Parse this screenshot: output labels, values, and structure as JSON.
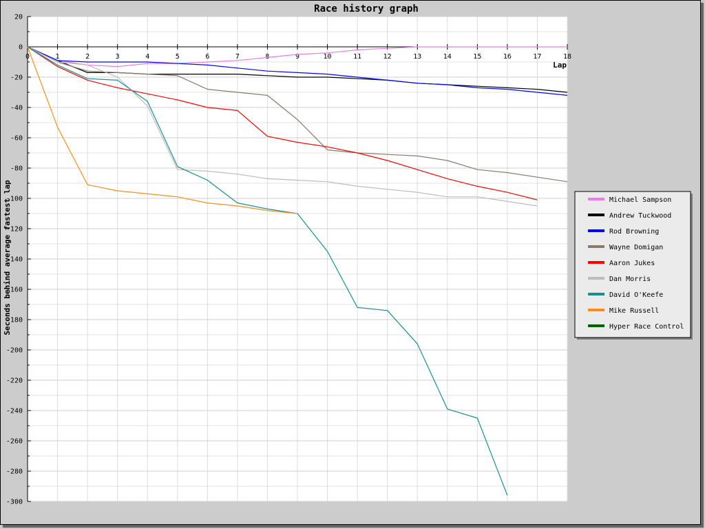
{
  "chart_data": {
    "type": "line",
    "title": "Race history graph",
    "xlabel": "Lap",
    "ylabel": "Seconds behind average fastest lap",
    "xlim": [
      0,
      18
    ],
    "ylim": [
      -300,
      20
    ],
    "xticks": [
      0,
      1,
      2,
      3,
      4,
      5,
      6,
      7,
      8,
      9,
      10,
      11,
      12,
      13,
      14,
      15,
      16,
      17,
      18
    ],
    "yticks": [
      20,
      0,
      -20,
      -40,
      -60,
      -80,
      -100,
      -120,
      -140,
      -160,
      -180,
      -200,
      -220,
      -240,
      -260,
      -280,
      -300
    ],
    "grid": true,
    "legend_position": "right",
    "series": [
      {
        "name": "Michael Sampson",
        "color": "#e87de8",
        "x": [
          0,
          1,
          2,
          3,
          4,
          5,
          6,
          7,
          8,
          9,
          10,
          11,
          12,
          13,
          14,
          15,
          16,
          17,
          18
        ],
        "y": [
          0,
          -9,
          -12,
          -13,
          -11,
          -11,
          -10,
          -9,
          -7,
          -5,
          -4,
          -2,
          -1,
          0,
          0,
          0,
          0,
          0,
          0
        ]
      },
      {
        "name": "Andrew Tuckwood",
        "color": "#000000",
        "x": [
          0,
          1,
          2,
          3,
          4,
          5,
          6,
          7,
          8,
          9,
          10,
          11,
          12,
          13,
          14,
          15,
          16,
          17,
          18
        ],
        "y": [
          0,
          -9,
          -17,
          -17,
          -18,
          -18,
          -18,
          -18,
          -19,
          -20,
          -20,
          -21,
          -22,
          -24,
          -25,
          -26,
          -27,
          -28,
          -30
        ]
      },
      {
        "name": "Rod Browning",
        "color": "#0000ff",
        "x": [
          0,
          1,
          2,
          3,
          4,
          5,
          6,
          7,
          8,
          9,
          10,
          11,
          12,
          13,
          14,
          15,
          16,
          17,
          18
        ],
        "y": [
          0,
          -9,
          -10,
          -10,
          -10,
          -11,
          -12,
          -14,
          -16,
          -17,
          -18,
          -20,
          -22,
          -24,
          -25,
          -27,
          -28,
          -30,
          -32
        ]
      },
      {
        "name": "Wayne Domigan",
        "color": "#8b7a6b",
        "x": [
          0,
          1,
          2,
          3,
          4,
          5,
          6,
          7,
          8,
          9,
          10,
          11,
          12,
          13,
          14,
          15,
          16,
          17,
          18
        ],
        "y": [
          0,
          -10,
          -16,
          -17,
          -18,
          -19,
          -28,
          -30,
          -32,
          -48,
          -68,
          -70,
          -71,
          -72,
          -75,
          -81,
          -83,
          -86,
          -89
        ]
      },
      {
        "name": "Aaron Jukes",
        "color": "#ff0000",
        "x": [
          0,
          1,
          2,
          3,
          4,
          5,
          6,
          7,
          8,
          9,
          10,
          11,
          12,
          13,
          14,
          15,
          16,
          17
        ],
        "y": [
          0,
          -13,
          -22,
          -27,
          -31,
          -35,
          -40,
          -42,
          -59,
          -63,
          -66,
          -70,
          -75,
          -81,
          -87,
          -92,
          -96,
          -101
        ]
      },
      {
        "name": "Dan Morris",
        "color": "#bbbbbb",
        "x": [
          0,
          1,
          2,
          3,
          4,
          5,
          6,
          7,
          8,
          9,
          10,
          11,
          12,
          13,
          14,
          15,
          16,
          17
        ],
        "y": [
          0,
          -10,
          -12,
          -20,
          -39,
          -81,
          -82,
          -84,
          -87,
          -88,
          -89,
          -92,
          -94,
          -96,
          -99,
          -99,
          -102,
          -105
        ]
      },
      {
        "name": "David O'Keefe",
        "color": "#1a8f8f",
        "x": [
          0,
          1,
          2,
          3,
          4,
          5,
          6,
          7,
          8,
          9,
          10,
          11,
          12,
          13,
          14,
          15,
          16
        ],
        "y": [
          0,
          -12,
          -21,
          -22,
          -36,
          -79,
          -88,
          -103,
          -107,
          -110,
          -135,
          -172,
          -174,
          -196,
          -239,
          -245,
          -296
        ]
      },
      {
        "name": "Mike Russell",
        "color": "#ff8c1a",
        "x": [
          0,
          1,
          2,
          3,
          4,
          5,
          6,
          7,
          8,
          9
        ],
        "y": [
          0,
          -53,
          -91,
          -95,
          -97,
          -99,
          -103,
          -105,
          -108,
          -110
        ]
      },
      {
        "name": "Hyper Race Control",
        "color": "#006400",
        "x": [],
        "y": []
      }
    ]
  }
}
